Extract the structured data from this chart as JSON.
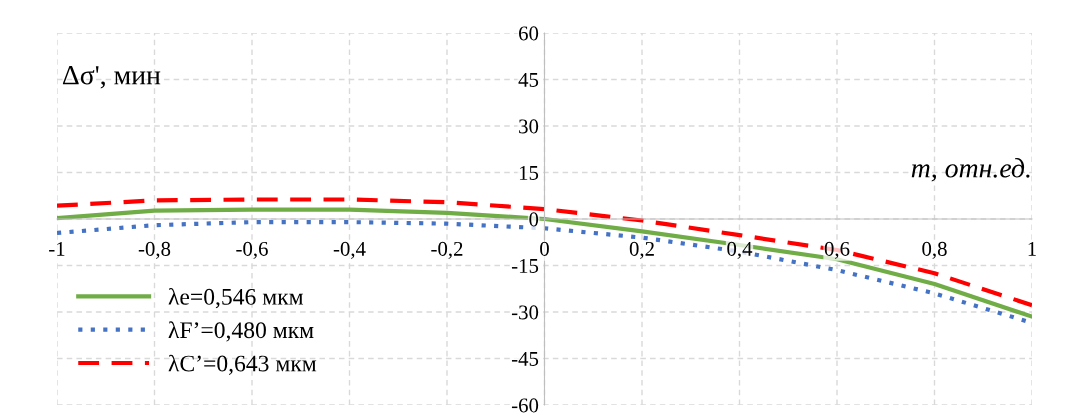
{
  "chart_data": {
    "type": "line",
    "xlabel": "m, отн.ед.",
    "ylabel": "Δσ', мин",
    "x": [
      -1,
      -0.8,
      -0.6,
      -0.4,
      -0.2,
      0,
      0.2,
      0.4,
      0.6,
      0.8,
      1
    ],
    "series": [
      {
        "name": "λe=0,546 мкм",
        "color": "#70ad47",
        "line_style": "solid",
        "values": [
          0.3,
          2.7,
          3,
          3,
          2,
          0,
          -4,
          -8.4,
          -13,
          -21,
          -31.5
        ]
      },
      {
        "name": "λF’=0,480 мкм",
        "color": "#4472c4",
        "line_style": "dotted",
        "values": [
          -4.5,
          -2,
          -1,
          -1,
          -1.5,
          -3,
          -6,
          -10.5,
          -16.5,
          -24,
          -33.5
        ]
      },
      {
        "name": "λC’=0,643 мкм",
        "color": "#ff0000",
        "line_style": "dashed",
        "values": [
          4.3,
          6,
          6.3,
          6.3,
          5.4,
          3.2,
          -0.5,
          -5.2,
          -10,
          -17.5,
          -27.8
        ]
      }
    ],
    "xlim": [
      -1,
      1
    ],
    "ylim": [
      -60,
      60
    ],
    "xticks": [
      -1,
      {
        "value": -0.8,
        "label": "-0,8"
      },
      {
        "value": -0.6,
        "label": "-0,6"
      },
      {
        "value": -0.4,
        "label": "-0,4"
      },
      {
        "value": -0.2,
        "label": "-0,2"
      },
      0,
      {
        "value": 0.2,
        "label": "0,2"
      },
      {
        "value": 0.4,
        "label": "0,4"
      },
      {
        "value": 0.6,
        "label": "0,6"
      },
      {
        "value": 0.8,
        "label": "0,8"
      },
      1
    ],
    "yticks": [
      -60,
      -45,
      -30,
      -15,
      0,
      15,
      30,
      45,
      60
    ],
    "grid": true,
    "legend": "bottom left",
    "marker": "none"
  }
}
